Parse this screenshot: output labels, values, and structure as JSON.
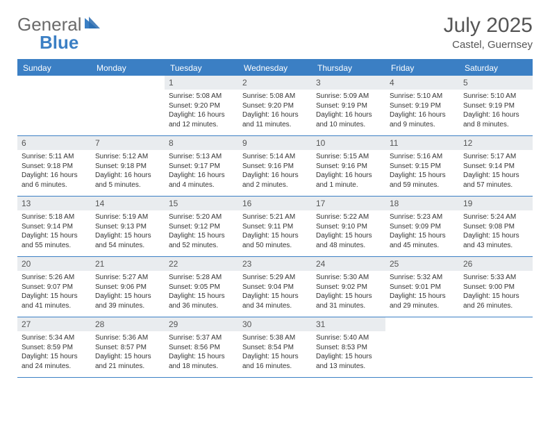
{
  "logo": {
    "text1": "General",
    "text2": "Blue"
  },
  "header": {
    "title": "July 2025",
    "location": "Castel, Guernsey"
  },
  "colors": {
    "accent": "#3b7fc4",
    "gray_bg": "#e9ecef",
    "text": "#555555"
  },
  "day_headers": [
    "Sunday",
    "Monday",
    "Tuesday",
    "Wednesday",
    "Thursday",
    "Friday",
    "Saturday"
  ],
  "weeks": [
    [
      {
        "num": "",
        "sunrise": "",
        "sunset": "",
        "daylight": ""
      },
      {
        "num": "",
        "sunrise": "",
        "sunset": "",
        "daylight": ""
      },
      {
        "num": "1",
        "sunrise": "Sunrise: 5:08 AM",
        "sunset": "Sunset: 9:20 PM",
        "daylight": "Daylight: 16 hours and 12 minutes."
      },
      {
        "num": "2",
        "sunrise": "Sunrise: 5:08 AM",
        "sunset": "Sunset: 9:20 PM",
        "daylight": "Daylight: 16 hours and 11 minutes."
      },
      {
        "num": "3",
        "sunrise": "Sunrise: 5:09 AM",
        "sunset": "Sunset: 9:19 PM",
        "daylight": "Daylight: 16 hours and 10 minutes."
      },
      {
        "num": "4",
        "sunrise": "Sunrise: 5:10 AM",
        "sunset": "Sunset: 9:19 PM",
        "daylight": "Daylight: 16 hours and 9 minutes."
      },
      {
        "num": "5",
        "sunrise": "Sunrise: 5:10 AM",
        "sunset": "Sunset: 9:19 PM",
        "daylight": "Daylight: 16 hours and 8 minutes."
      }
    ],
    [
      {
        "num": "6",
        "sunrise": "Sunrise: 5:11 AM",
        "sunset": "Sunset: 9:18 PM",
        "daylight": "Daylight: 16 hours and 6 minutes."
      },
      {
        "num": "7",
        "sunrise": "Sunrise: 5:12 AM",
        "sunset": "Sunset: 9:18 PM",
        "daylight": "Daylight: 16 hours and 5 minutes."
      },
      {
        "num": "8",
        "sunrise": "Sunrise: 5:13 AM",
        "sunset": "Sunset: 9:17 PM",
        "daylight": "Daylight: 16 hours and 4 minutes."
      },
      {
        "num": "9",
        "sunrise": "Sunrise: 5:14 AM",
        "sunset": "Sunset: 9:16 PM",
        "daylight": "Daylight: 16 hours and 2 minutes."
      },
      {
        "num": "10",
        "sunrise": "Sunrise: 5:15 AM",
        "sunset": "Sunset: 9:16 PM",
        "daylight": "Daylight: 16 hours and 1 minute."
      },
      {
        "num": "11",
        "sunrise": "Sunrise: 5:16 AM",
        "sunset": "Sunset: 9:15 PM",
        "daylight": "Daylight: 15 hours and 59 minutes."
      },
      {
        "num": "12",
        "sunrise": "Sunrise: 5:17 AM",
        "sunset": "Sunset: 9:14 PM",
        "daylight": "Daylight: 15 hours and 57 minutes."
      }
    ],
    [
      {
        "num": "13",
        "sunrise": "Sunrise: 5:18 AM",
        "sunset": "Sunset: 9:14 PM",
        "daylight": "Daylight: 15 hours and 55 minutes."
      },
      {
        "num": "14",
        "sunrise": "Sunrise: 5:19 AM",
        "sunset": "Sunset: 9:13 PM",
        "daylight": "Daylight: 15 hours and 54 minutes."
      },
      {
        "num": "15",
        "sunrise": "Sunrise: 5:20 AM",
        "sunset": "Sunset: 9:12 PM",
        "daylight": "Daylight: 15 hours and 52 minutes."
      },
      {
        "num": "16",
        "sunrise": "Sunrise: 5:21 AM",
        "sunset": "Sunset: 9:11 PM",
        "daylight": "Daylight: 15 hours and 50 minutes."
      },
      {
        "num": "17",
        "sunrise": "Sunrise: 5:22 AM",
        "sunset": "Sunset: 9:10 PM",
        "daylight": "Daylight: 15 hours and 48 minutes."
      },
      {
        "num": "18",
        "sunrise": "Sunrise: 5:23 AM",
        "sunset": "Sunset: 9:09 PM",
        "daylight": "Daylight: 15 hours and 45 minutes."
      },
      {
        "num": "19",
        "sunrise": "Sunrise: 5:24 AM",
        "sunset": "Sunset: 9:08 PM",
        "daylight": "Daylight: 15 hours and 43 minutes."
      }
    ],
    [
      {
        "num": "20",
        "sunrise": "Sunrise: 5:26 AM",
        "sunset": "Sunset: 9:07 PM",
        "daylight": "Daylight: 15 hours and 41 minutes."
      },
      {
        "num": "21",
        "sunrise": "Sunrise: 5:27 AM",
        "sunset": "Sunset: 9:06 PM",
        "daylight": "Daylight: 15 hours and 39 minutes."
      },
      {
        "num": "22",
        "sunrise": "Sunrise: 5:28 AM",
        "sunset": "Sunset: 9:05 PM",
        "daylight": "Daylight: 15 hours and 36 minutes."
      },
      {
        "num": "23",
        "sunrise": "Sunrise: 5:29 AM",
        "sunset": "Sunset: 9:04 PM",
        "daylight": "Daylight: 15 hours and 34 minutes."
      },
      {
        "num": "24",
        "sunrise": "Sunrise: 5:30 AM",
        "sunset": "Sunset: 9:02 PM",
        "daylight": "Daylight: 15 hours and 31 minutes."
      },
      {
        "num": "25",
        "sunrise": "Sunrise: 5:32 AM",
        "sunset": "Sunset: 9:01 PM",
        "daylight": "Daylight: 15 hours and 29 minutes."
      },
      {
        "num": "26",
        "sunrise": "Sunrise: 5:33 AM",
        "sunset": "Sunset: 9:00 PM",
        "daylight": "Daylight: 15 hours and 26 minutes."
      }
    ],
    [
      {
        "num": "27",
        "sunrise": "Sunrise: 5:34 AM",
        "sunset": "Sunset: 8:59 PM",
        "daylight": "Daylight: 15 hours and 24 minutes."
      },
      {
        "num": "28",
        "sunrise": "Sunrise: 5:36 AM",
        "sunset": "Sunset: 8:57 PM",
        "daylight": "Daylight: 15 hours and 21 minutes."
      },
      {
        "num": "29",
        "sunrise": "Sunrise: 5:37 AM",
        "sunset": "Sunset: 8:56 PM",
        "daylight": "Daylight: 15 hours and 18 minutes."
      },
      {
        "num": "30",
        "sunrise": "Sunrise: 5:38 AM",
        "sunset": "Sunset: 8:54 PM",
        "daylight": "Daylight: 15 hours and 16 minutes."
      },
      {
        "num": "31",
        "sunrise": "Sunrise: 5:40 AM",
        "sunset": "Sunset: 8:53 PM",
        "daylight": "Daylight: 15 hours and 13 minutes."
      },
      {
        "num": "",
        "sunrise": "",
        "sunset": "",
        "daylight": ""
      },
      {
        "num": "",
        "sunrise": "",
        "sunset": "",
        "daylight": ""
      }
    ]
  ]
}
